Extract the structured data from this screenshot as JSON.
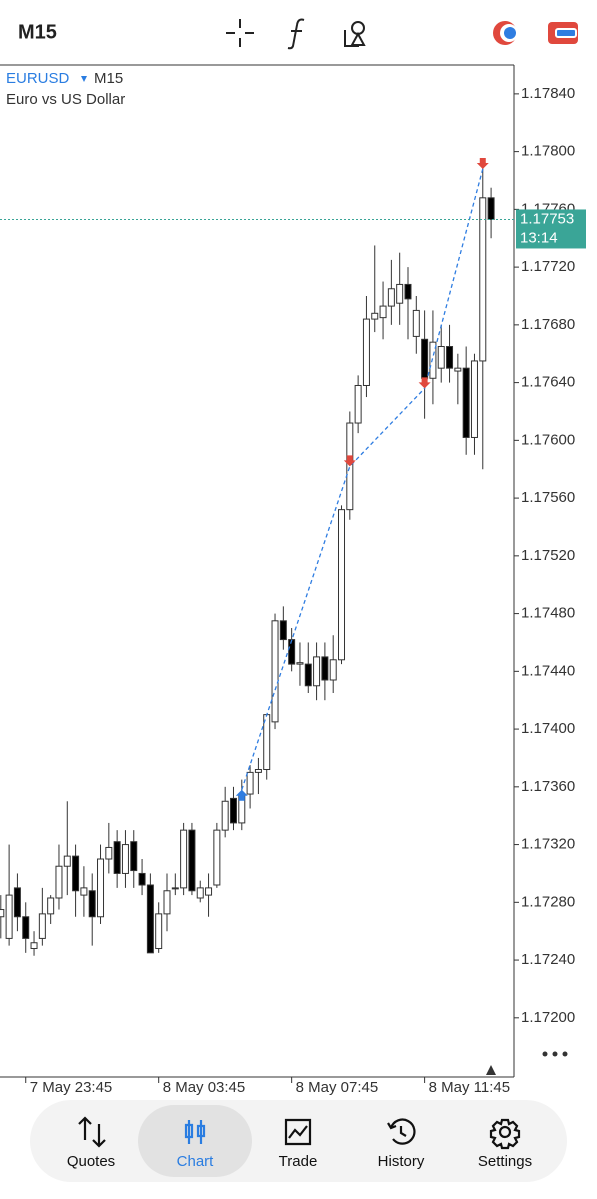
{
  "toolbar": {
    "timeframe": "M15"
  },
  "chart_data": {
    "type": "candlestick",
    "symbol": "EURUSD",
    "timeframe": "M15",
    "subtitle": "Euro vs US Dollar",
    "categories": [
      null,
      null,
      null,
      "7 May 23:45",
      null,
      null,
      null,
      null,
      null,
      null,
      null,
      null,
      null,
      null,
      null,
      null,
      null,
      null,
      null,
      "8 May 03:45",
      null,
      null,
      null,
      null,
      null,
      null,
      null,
      null,
      null,
      null,
      null,
      null,
      null,
      null,
      null,
      "8 May 07:45",
      null,
      null,
      null,
      null,
      null,
      null,
      null,
      null,
      null,
      null,
      null,
      null,
      null,
      null,
      null,
      "8 May 11:45",
      null,
      null,
      null,
      null,
      null,
      null,
      null,
      null
    ],
    "open": [
      1.1727,
      1.17255,
      1.1729,
      1.1727,
      1.17248,
      1.17255,
      1.17272,
      1.17283,
      1.17305,
      1.17312,
      1.17285,
      1.17288,
      1.1727,
      1.1731,
      1.17322,
      1.173,
      1.17322,
      1.173,
      1.17292,
      1.17248,
      1.17272,
      1.1729,
      1.1729,
      1.1733,
      1.17283,
      1.17285,
      1.17292,
      1.1733,
      1.17352,
      1.17335,
      1.17355,
      1.1737,
      1.17372,
      1.17405,
      1.17475,
      1.17462,
      1.17445,
      1.17445,
      1.1743,
      1.1745,
      1.17434,
      1.17448,
      1.17552,
      1.17612,
      1.17638,
      1.17684,
      1.17685,
      1.17693,
      1.17695,
      1.17708,
      1.17672,
      1.1767,
      1.17643,
      1.1765,
      1.17665,
      1.17648,
      1.1765,
      1.17602,
      1.17655,
      1.17768
    ],
    "high": [
      1.17285,
      1.1732,
      1.173,
      1.1728,
      1.1726,
      1.1729,
      1.17285,
      1.1732,
      1.1735,
      1.1732,
      1.17305,
      1.173,
      1.1732,
      1.17335,
      1.1733,
      1.1733,
      1.1733,
      1.1731,
      1.173,
      1.1728,
      1.173,
      1.173,
      1.17335,
      1.17335,
      1.17295,
      1.173,
      1.17335,
      1.1736,
      1.1736,
      1.17365,
      1.17375,
      1.1738,
      1.1741,
      1.1748,
      1.17485,
      1.1747,
      1.1746,
      1.1746,
      1.1746,
      1.1746,
      1.17465,
      1.17555,
      1.1762,
      1.17645,
      1.177,
      1.17735,
      1.1771,
      1.17725,
      1.1773,
      1.1772,
      1.177,
      1.1769,
      1.1769,
      1.1768,
      1.1768,
      1.1766,
      1.17665,
      1.1766,
      1.17795,
      1.17775
    ],
    "low": [
      1.17255,
      1.1725,
      1.1726,
      1.17245,
      1.17243,
      1.1725,
      1.17265,
      1.17275,
      1.17285,
      1.1727,
      1.1727,
      1.1725,
      1.17265,
      1.173,
      1.1729,
      1.1729,
      1.1729,
      1.17285,
      1.17245,
      1.17245,
      1.1726,
      1.17285,
      1.17285,
      1.17285,
      1.1728,
      1.1727,
      1.1729,
      1.17325,
      1.1733,
      1.1733,
      1.17345,
      1.17355,
      1.17365,
      1.174,
      1.17455,
      1.1744,
      1.1743,
      1.17425,
      1.1742,
      1.1742,
      1.17425,
      1.17445,
      1.17545,
      1.17605,
      1.1763,
      1.17675,
      1.1767,
      1.1768,
      1.1768,
      1.1767,
      1.1766,
      1.17615,
      1.17625,
      1.1764,
      1.1764,
      1.17625,
      1.1759,
      1.1759,
      1.1758,
      1.1774
    ],
    "close": [
      1.17275,
      1.17285,
      1.1727,
      1.17255,
      1.17252,
      1.17272,
      1.17283,
      1.17305,
      1.17312,
      1.17288,
      1.1729,
      1.1727,
      1.1731,
      1.17318,
      1.173,
      1.1732,
      1.17302,
      1.17292,
      1.17245,
      1.17272,
      1.17288,
      1.1729,
      1.1733,
      1.17288,
      1.1729,
      1.1729,
      1.1733,
      1.1735,
      1.17335,
      1.17355,
      1.1737,
      1.17372,
      1.1741,
      1.17475,
      1.17462,
      1.17445,
      1.17446,
      1.1743,
      1.1745,
      1.17434,
      1.17448,
      1.17552,
      1.17612,
      1.17638,
      1.17684,
      1.17688,
      1.17693,
      1.17705,
      1.17708,
      1.17698,
      1.1769,
      1.17643,
      1.17668,
      1.17665,
      1.1765,
      1.1765,
      1.17602,
      1.17655,
      1.17768,
      1.17753
    ],
    "up_color": "#ffffff",
    "down_color": "#000000",
    "buy_markers": [
      null,
      null,
      null,
      null,
      null,
      null,
      null,
      null,
      null,
      null,
      null,
      null,
      null,
      null,
      null,
      null,
      null,
      null,
      null,
      null,
      null,
      null,
      null,
      null,
      null,
      null,
      null,
      null,
      null,
      1.17358,
      null,
      null,
      null,
      null,
      null,
      null,
      null,
      null,
      null,
      null,
      null,
      null,
      null,
      null,
      null,
      null,
      null,
      null,
      null,
      null,
      null,
      null,
      null,
      null,
      null,
      null,
      null,
      null,
      null,
      null
    ],
    "sell_markers": [
      null,
      null,
      null,
      null,
      null,
      null,
      null,
      null,
      null,
      null,
      null,
      null,
      null,
      null,
      null,
      null,
      null,
      null,
      null,
      null,
      null,
      null,
      null,
      null,
      null,
      null,
      null,
      null,
      null,
      null,
      null,
      null,
      null,
      null,
      null,
      null,
      null,
      null,
      null,
      null,
      null,
      null,
      1.17582,
      null,
      null,
      null,
      null,
      null,
      null,
      null,
      null,
      1.17636,
      null,
      null,
      null,
      null,
      null,
      null,
      1.17788,
      null
    ],
    "buy_color": "#2f7de1",
    "sell_color": "#e0483d",
    "current_price": 1.17753,
    "timer": "13:14",
    "price_color": "#3aa597",
    "ylim": [
      1.17159,
      1.1786
    ],
    "yticks": [
      {
        "value": 1.172,
        "label": "1.17200"
      },
      {
        "value": 1.1724,
        "label": "1.17240"
      },
      {
        "value": 1.1728,
        "label": "1.17280"
      },
      {
        "value": 1.1732,
        "label": "1.17320"
      },
      {
        "value": 1.1736,
        "label": "1.17360"
      },
      {
        "value": 1.174,
        "label": "1.17400"
      },
      {
        "value": 1.1744,
        "label": "1.17440"
      },
      {
        "value": 1.1748,
        "label": "1.17480"
      },
      {
        "value": 1.1752,
        "label": "1.17520"
      },
      {
        "value": 1.1756,
        "label": "1.17560"
      },
      {
        "value": 1.176,
        "label": "1.17600"
      },
      {
        "value": 1.1764,
        "label": "1.17640"
      },
      {
        "value": 1.1768,
        "label": "1.17680"
      },
      {
        "value": 1.1772,
        "label": "1.17720"
      },
      {
        "value": 1.1776,
        "label": "1.17760"
      },
      {
        "value": 1.178,
        "label": "1.17800"
      },
      {
        "value": 1.1784,
        "label": "1.17840"
      }
    ]
  },
  "nav": {
    "items": [
      {
        "label": "Quotes"
      },
      {
        "label": "Chart"
      },
      {
        "label": "Trade"
      },
      {
        "label": "History"
      },
      {
        "label": "Settings"
      }
    ],
    "active": 1
  }
}
